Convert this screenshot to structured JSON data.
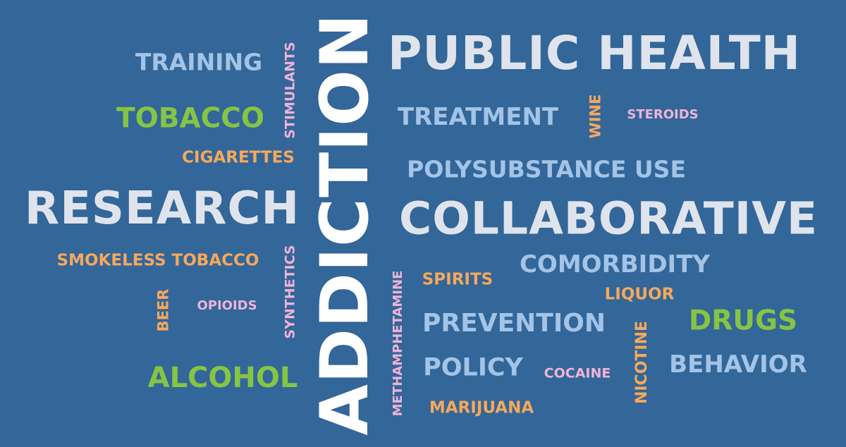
{
  "background_color": "#336699",
  "colors": {
    "white": "#ffffff",
    "light_grey": "#dfe4ec",
    "light_blue": "#a3c4e6",
    "green": "#86c444",
    "orange": "#f6a85c",
    "pink": "#efb3d6"
  },
  "words": {
    "addiction": "ADDICTION",
    "public_health": "PUBLIC HEALTH",
    "collaborative": "COLLABORATIVE",
    "research": "RESEARCH",
    "training": "TRAINING",
    "stimulants": "STIMULANTS",
    "tobacco": "TOBACCO",
    "cigarettes": "CIGARETTES",
    "treatment": "TREATMENT",
    "wine": "WINE",
    "steroids": "STEROIDS",
    "polysubstance_use": "POLYSUBSTANCE USE",
    "smokeless_tobacco": "SMOKELESS TOBACCO",
    "synthetics": "SYNTHETICS",
    "comorbidity": "COMORBIDITY",
    "spirits": "SPIRITS",
    "liquor": "LIQUOR",
    "beer": "BEER",
    "opioids": "OPIOIDS",
    "methamphetamine": "METHAMPHETAMINE",
    "prevention": "PREVENTION",
    "drugs": "DRUGS",
    "nicotine": "NICOTINE",
    "alcohol": "ALCOHOL",
    "policy": "POLICY",
    "cocaine": "COCAINE",
    "behavior": "BEHAVIOR",
    "marijuana": "MARIJUANA"
  }
}
